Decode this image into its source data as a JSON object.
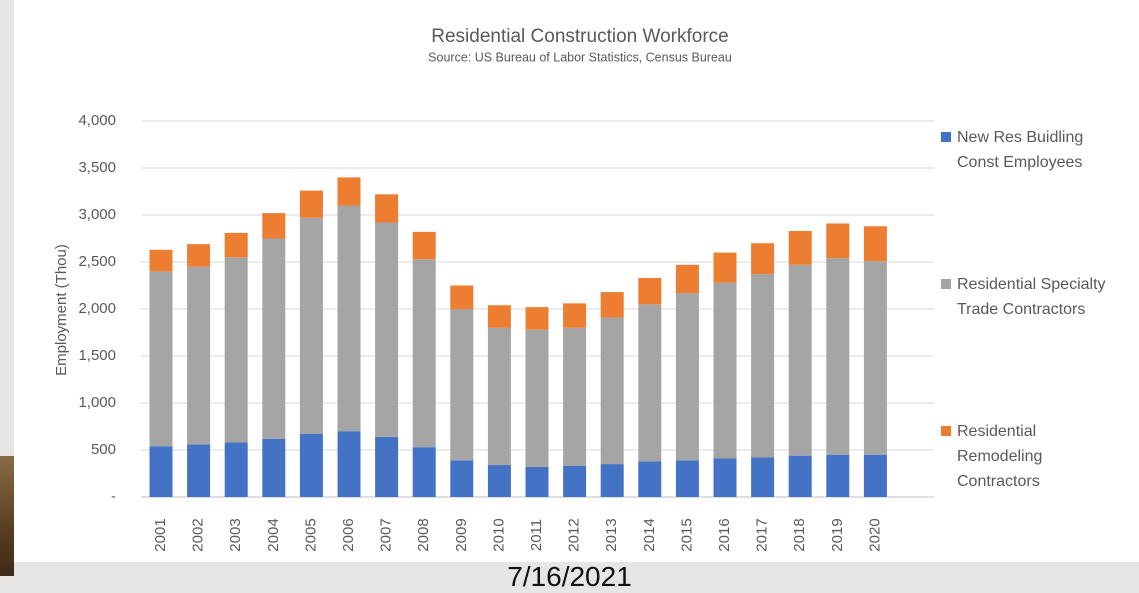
{
  "chart_data": {
    "type": "stacked_bar",
    "title": "Residential Construction Workforce",
    "subtitle": "Source: US Bureau of Labor Statistics, Census Bureau",
    "y_label": "Employment (Thou)",
    "categories": [
      "2001",
      "2002",
      "2003",
      "2004",
      "2005",
      "2006",
      "2007",
      "2008",
      "2009",
      "2010",
      "2011",
      "2012",
      "2013",
      "2014",
      "2015",
      "2016",
      "2017",
      "2018",
      "2019",
      "2020"
    ],
    "series": [
      {
        "name": "New Res Buidling Const Employees",
        "color": "#4472c4",
        "values": [
          540,
          560,
          580,
          620,
          670,
          700,
          640,
          530,
          390,
          340,
          320,
          330,
          350,
          380,
          390,
          410,
          420,
          440,
          450,
          450
        ]
      },
      {
        "name": "Residential Specialty Trade Contractors",
        "color": "#a5a5a5",
        "values": [
          1860,
          1890,
          1970,
          2130,
          2300,
          2400,
          2280,
          2000,
          1610,
          1460,
          1460,
          1470,
          1560,
          1670,
          1780,
          1870,
          1950,
          2030,
          2090,
          2060
        ]
      },
      {
        "name": "Residential Remodeling Contractors",
        "color": "#ed7d31",
        "values": [
          230,
          240,
          260,
          270,
          290,
          300,
          300,
          290,
          250,
          240,
          240,
          260,
          270,
          280,
          300,
          320,
          330,
          360,
          370,
          370
        ]
      }
    ],
    "ylim": [
      0,
      4000
    ],
    "yticks": [
      {
        "value": 0,
        "label": "-"
      },
      500,
      {
        "value": 1000,
        "label": "1,000"
      },
      {
        "value": 1500,
        "label": "1,500"
      },
      {
        "value": 2000,
        "label": "2,000"
      },
      {
        "value": 2500,
        "label": "2,500"
      },
      {
        "value": 3000,
        "label": "3,000"
      },
      {
        "value": 3500,
        "label": "3,500"
      },
      {
        "value": 4000,
        "label": "4,000"
      }
    ],
    "grid": true,
    "legend": "right"
  },
  "footer_date": "7/16/2021"
}
